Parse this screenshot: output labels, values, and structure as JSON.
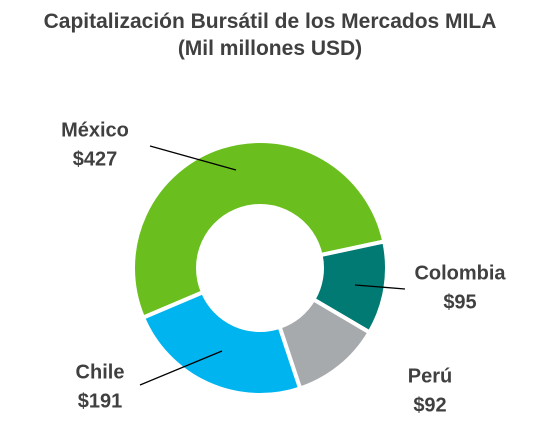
{
  "chart_data": {
    "type": "donut",
    "title": "Capitalización Bursátil de los Mercados MILA",
    "subtitle": "(Mil millones USD)",
    "categories": [
      "México",
      "Colombia",
      "Perú",
      "Chile"
    ],
    "values": [
      427,
      95,
      92,
      191
    ],
    "value_labels": [
      "$427",
      "$95",
      "$92",
      "$191"
    ],
    "colors": [
      "#6abf1e",
      "#007a72",
      "#a7aaad",
      "#00b5ef"
    ]
  }
}
